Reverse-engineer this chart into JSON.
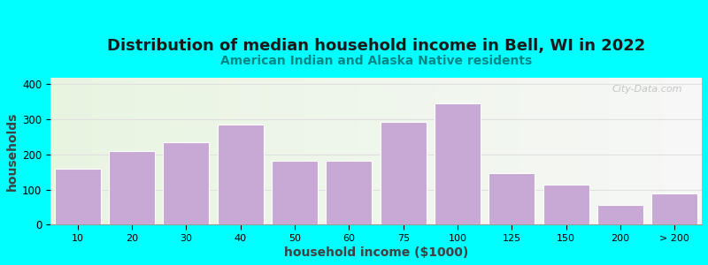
{
  "title": "Distribution of median household income in Bell, WI in 2022",
  "subtitle": "American Indian and Alaska Native residents",
  "xlabel": "household income ($1000)",
  "ylabel": "households",
  "background_outer": "#00FFFF",
  "background_inner_left": "#e8f5e2",
  "background_inner_right": "#f8f8f8",
  "bar_color": "#c8a8d4",
  "bar_edge_color": "#ffffff",
  "title_fontsize": 13,
  "subtitle_fontsize": 10,
  "subtitle_color": "#008888",
  "axis_label_fontsize": 10,
  "tick_labels": [
    "10",
    "20",
    "30",
    "40",
    "50",
    "60",
    "75",
    "100",
    "125",
    "150",
    "200",
    "> 200"
  ],
  "bar_heights": [
    160,
    210,
    235,
    285,
    182,
    182,
    292,
    345,
    148,
    115,
    57,
    90
  ],
  "ylim": [
    0,
    420
  ],
  "yticks": [
    0,
    100,
    200,
    300,
    400
  ],
  "watermark": "City-Data.com",
  "grid_color": "#e0e0e0"
}
